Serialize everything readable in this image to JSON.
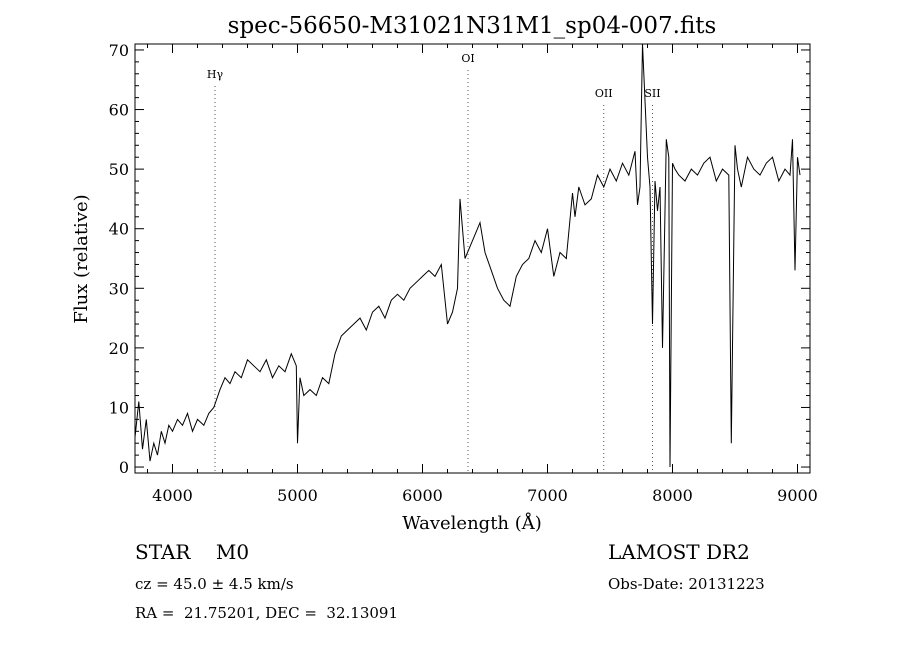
{
  "chart_data": {
    "type": "line",
    "title": "spec-56650-M31021N31M1_sp04-007.fits",
    "xlabel": "Wavelength (Å)",
    "ylabel": "Flux (relative)",
    "xlim": [
      3700,
      9100
    ],
    "ylim": [
      -1,
      71
    ],
    "xticks": [
      4000,
      5000,
      6000,
      7000,
      8000,
      9000
    ],
    "yticks": [
      0,
      10,
      20,
      30,
      40,
      50,
      60,
      70
    ],
    "grid": false,
    "lines": [
      {
        "label": "Hγ",
        "x": 4340
      },
      {
        "label": "OI",
        "x": 6364
      },
      {
        "label": "OII",
        "x": 7450
      },
      {
        "label": "SII",
        "x": 7840
      }
    ],
    "series": [
      {
        "x": [
          3700,
          3730,
          3760,
          3790,
          3820,
          3850,
          3880,
          3910,
          3940,
          3970,
          4000,
          4040,
          4080,
          4120,
          4160,
          4200,
          4250,
          4290,
          4330,
          4380,
          4420,
          4460,
          4500,
          4550,
          4600,
          4650,
          4700,
          4750,
          4800,
          4850,
          4900,
          4950,
          4990,
          5000,
          5020,
          5050,
          5100,
          5150,
          5200,
          5250,
          5300,
          5350,
          5400,
          5450,
          5500,
          5550,
          5600,
          5650,
          5700,
          5750,
          5800,
          5850,
          5900,
          5950,
          6000,
          6050,
          6100,
          6150,
          6200,
          6240,
          6280,
          6300,
          6340,
          6380,
          6420,
          6460,
          6500,
          6550,
          6600,
          6650,
          6700,
          6750,
          6800,
          6850,
          6900,
          6950,
          7000,
          7050,
          7100,
          7150,
          7200,
          7220,
          7250,
          7300,
          7350,
          7400,
          7450,
          7500,
          7550,
          7600,
          7650,
          7700,
          7720,
          7740,
          7760,
          7800,
          7820,
          7840,
          7860,
          7880,
          7900,
          7920,
          7950,
          7970,
          7980,
          8000,
          8020,
          8050,
          8100,
          8150,
          8200,
          8250,
          8300,
          8350,
          8400,
          8450,
          8470,
          8500,
          8520,
          8550,
          8600,
          8650,
          8700,
          8750,
          8800,
          8850,
          8900,
          8940,
          8960,
          8980,
          9000,
          9020
        ],
        "y": [
          5,
          11,
          3,
          8,
          1,
          4,
          2,
          6,
          4,
          7,
          6,
          8,
          7,
          9,
          6,
          8,
          7,
          9,
          10,
          13,
          15,
          14,
          16,
          15,
          18,
          17,
          16,
          18,
          15,
          17,
          16,
          19,
          17,
          4,
          15,
          12,
          13,
          12,
          15,
          14,
          19,
          22,
          23,
          24,
          25,
          23,
          26,
          27,
          25,
          28,
          29,
          28,
          30,
          31,
          32,
          33,
          32,
          34,
          24,
          26,
          30,
          45,
          35,
          37,
          39,
          41,
          36,
          33,
          30,
          28,
          27,
          32,
          34,
          35,
          38,
          36,
          40,
          32,
          36,
          35,
          46,
          42,
          47,
          44,
          45,
          49,
          47,
          50,
          48,
          51,
          49,
          53,
          44,
          47,
          72,
          52,
          47,
          24,
          48,
          43,
          47,
          20,
          55,
          52,
          0,
          51,
          50,
          49,
          48,
          50,
          49,
          51,
          52,
          48,
          50,
          49,
          4,
          54,
          50,
          47,
          52,
          50,
          49,
          51,
          52,
          48,
          50,
          49,
          55,
          33,
          52,
          49
        ]
      }
    ]
  },
  "footer": {
    "object": "STAR    M0",
    "survey": "LAMOST DR2",
    "velocity": "cz = 45.0 ± 4.5 km/s",
    "obsdate": "Obs-Date: 20131223",
    "coords": "RA =  21.75201, DEC =  32.13091"
  }
}
